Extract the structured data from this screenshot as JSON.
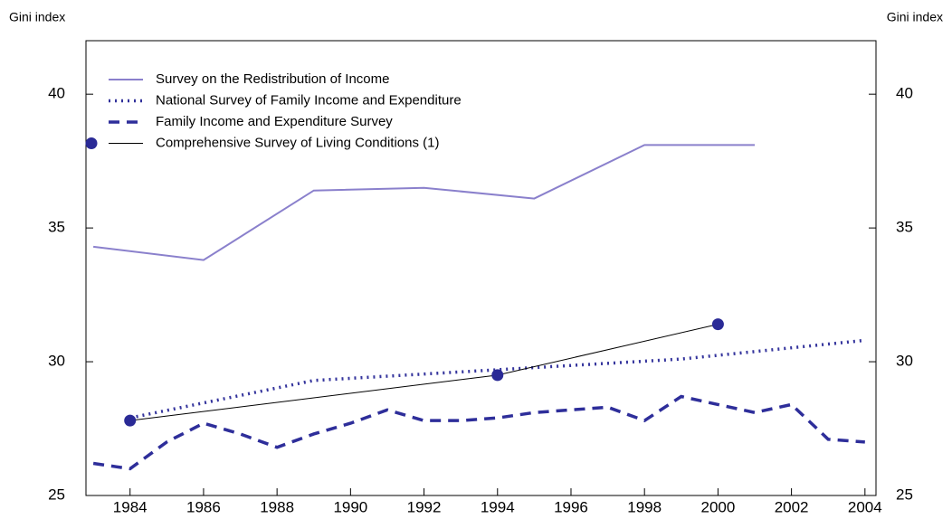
{
  "chart_data": {
    "type": "line",
    "y_label": "Gini index",
    "y2_label": "Gini index",
    "xlim": [
      1982.8,
      2004.3
    ],
    "xticks": [
      1984,
      1986,
      1988,
      1990,
      1992,
      1994,
      1996,
      1998,
      2000,
      2002,
      2004
    ],
    "ylim": [
      25,
      42
    ],
    "yticks": [
      25,
      30,
      35,
      40
    ],
    "y2lim": [
      25,
      42
    ],
    "y2ticks": [
      25,
      30,
      35,
      40
    ],
    "legend": "top-left",
    "series": [
      {
        "name": "Survey on the Redistribution of Income",
        "color": "#8a80cc",
        "line_style": "solid",
        "x": [
          1983,
          1986,
          1989,
          1992,
          1995,
          1998,
          2001
        ],
        "values": [
          34.3,
          33.8,
          36.4,
          36.5,
          36.1,
          38.1,
          38.1
        ]
      },
      {
        "name": "National Survey of Family Income and Expenditure",
        "color": "#33339c",
        "line_style": "dotted",
        "x": [
          1984,
          1989,
          1994,
          1999,
          2004
        ],
        "values": [
          27.9,
          29.3,
          29.7,
          30.1,
          30.8
        ]
      },
      {
        "name": "Family Income and Expenditure Survey",
        "color": "#2e2e9a",
        "line_style": "dashed",
        "x": [
          1983,
          1984,
          1985,
          1986,
          1987,
          1988,
          1989,
          1990,
          1991,
          1992,
          1993,
          1994,
          1995,
          1996,
          1997,
          1998,
          1999,
          2000,
          2001,
          2002,
          2003,
          2004
        ],
        "values": [
          26.2,
          26.0,
          27.0,
          27.7,
          27.3,
          26.8,
          27.3,
          27.7,
          28.2,
          27.8,
          27.8,
          27.9,
          28.1,
          28.2,
          28.3,
          27.8,
          28.7,
          28.4,
          28.1,
          28.4,
          27.1,
          27.0
        ]
      },
      {
        "name": "Comprehensive Survey of Living Conditions (1)",
        "color": "#000000",
        "marker_color": "#2a2a96",
        "line_style": "solid",
        "marker": true,
        "x": [
          1984,
          1994,
          2000
        ],
        "values": [
          27.8,
          29.5,
          31.4
        ]
      }
    ]
  }
}
